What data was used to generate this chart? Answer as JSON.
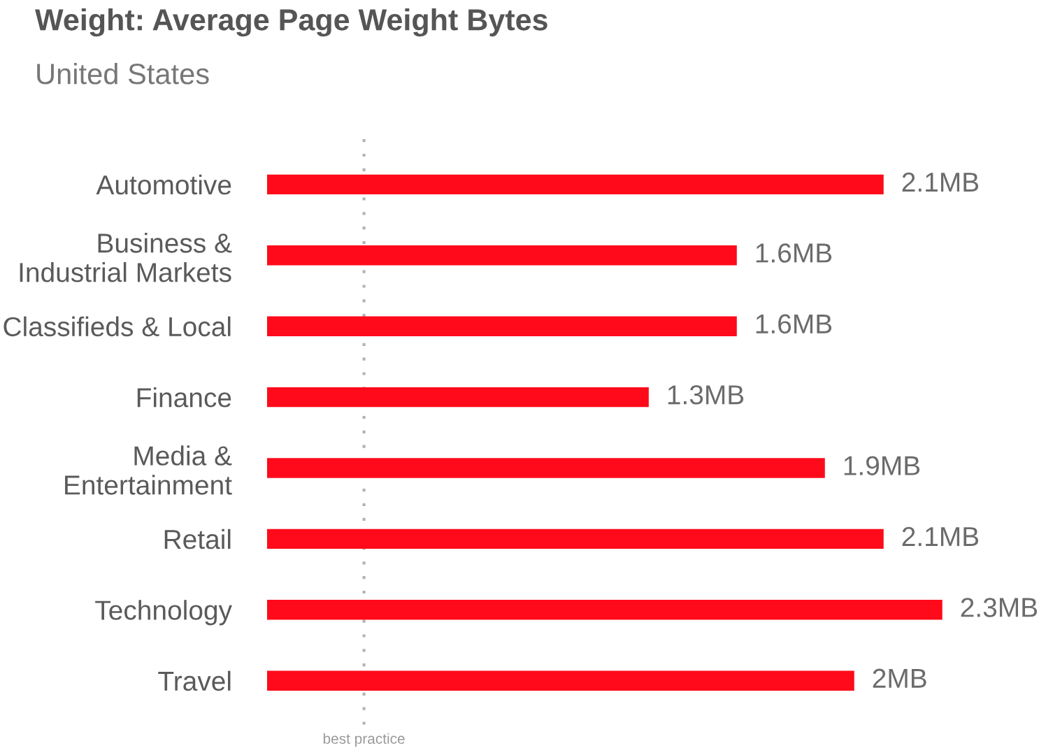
{
  "chart_data": {
    "type": "bar",
    "orientation": "horizontal",
    "title": "Weight: Average Page Weight Bytes",
    "subtitle": "United States",
    "categories": [
      "Automotive",
      "Business &\nIndustrial Markets",
      "Classifieds & Local",
      "Finance",
      "Media &\nEntertainment",
      "Retail",
      "Technology",
      "Travel"
    ],
    "values": [
      2.1,
      1.6,
      1.6,
      1.3,
      1.9,
      2.1,
      2.3,
      2
    ],
    "value_labels": [
      "2.1MB",
      "1.6MB",
      "1.6MB",
      "1.3MB",
      "1.9MB",
      "2.1MB",
      "2.3MB",
      "2MB"
    ],
    "color": "#fe0a1a",
    "tick_labels": "y",
    "ref_lines": [
      {
        "axis": "x",
        "value": 0.33,
        "label": "best practice",
        "color": "#b4b4b4",
        "line_style": "dotted"
      }
    ]
  }
}
